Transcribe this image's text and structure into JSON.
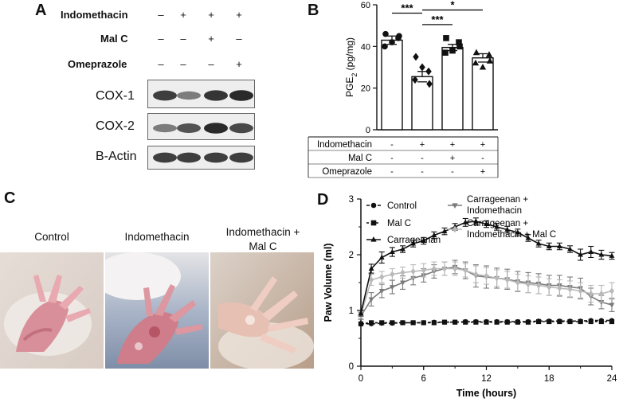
{
  "panels": {
    "a": "A",
    "b": "B",
    "c": "C",
    "d": "D"
  },
  "panel_a": {
    "conditions": [
      {
        "label": "Indomethacin",
        "signs": [
          "–",
          "+",
          "+",
          "+"
        ]
      },
      {
        "label": "Mal C",
        "signs": [
          "–",
          "–",
          "+",
          "–"
        ]
      },
      {
        "label": "Omeprazole",
        "signs": [
          "–",
          "–",
          "–",
          "+"
        ]
      }
    ],
    "blots": [
      {
        "label": "COX-1",
        "intensity": [
          0.85,
          0.55,
          0.9,
          0.95
        ]
      },
      {
        "label": "COX-2",
        "intensity": [
          0.55,
          0.75,
          0.95,
          0.8
        ]
      },
      {
        "label": "B-Actin",
        "intensity": [
          0.85,
          0.85,
          0.85,
          0.85
        ]
      }
    ]
  },
  "panel_c": {
    "captions": [
      "Control",
      "Indomethacin",
      "Indomethacin +\nMal C"
    ]
  },
  "chart_data": [
    {
      "type": "bar",
      "panel": "B",
      "ylabel": "PGE",
      "ylabel_sub": "2",
      "ylabel_unit": " (pg/mg)",
      "ylim": [
        0,
        60
      ],
      "yticks": [
        0,
        20,
        40,
        60
      ],
      "categories": [
        "Control",
        "Indomethacin",
        "Indomethacin + Mal C",
        "Indomethacin + Omeprazole"
      ],
      "values": [
        43,
        25.5,
        39.5,
        34.5
      ],
      "errors": [
        2,
        2.5,
        1.5,
        2
      ],
      "points": [
        [
          46,
          44,
          40,
          45,
          42
        ],
        [
          35,
          28,
          24,
          22,
          30
        ],
        [
          44,
          42,
          37,
          40,
          38
        ],
        [
          37,
          36,
          32,
          33,
          30
        ]
      ],
      "markers": [
        "circle",
        "diamond",
        "square",
        "triangle"
      ],
      "significance": [
        {
          "label": "***",
          "from": 0,
          "to": 1,
          "y": 56
        },
        {
          "label": "*",
          "from": 1,
          "to": 3,
          "y": 57.5
        },
        {
          "label": "***",
          "from": 1,
          "to": 2,
          "y": 50.5
        }
      ],
      "table": [
        {
          "label": "Indomethacin",
          "signs": [
            "-",
            "+",
            "+",
            "+"
          ]
        },
        {
          "label": "Mal C",
          "signs": [
            "-",
            "-",
            "+",
            "-"
          ]
        },
        {
          "label": "Omeprazole",
          "signs": [
            "-",
            "-",
            "-",
            "+"
          ]
        }
      ]
    },
    {
      "type": "line",
      "panel": "D",
      "xlabel": "Time (hours)",
      "ylabel": "Paw Volume (ml)",
      "xlim": [
        0,
        24
      ],
      "ylim": [
        0,
        3
      ],
      "xticks": [
        0,
        6,
        12,
        18,
        24
      ],
      "yticks": [
        0,
        1,
        2,
        3
      ],
      "x": [
        0,
        1,
        2,
        3,
        4,
        5,
        6,
        7,
        8,
        9,
        10,
        11,
        12,
        13,
        14,
        15,
        16,
        17,
        18,
        19,
        20,
        21,
        22,
        23,
        24
      ],
      "series": [
        {
          "name": "Control",
          "color": "#111111",
          "marker": "circle",
          "dash": "4,3",
          "values": [
            0.76,
            0.76,
            0.77,
            0.77,
            0.78,
            0.78,
            0.78,
            0.79,
            0.79,
            0.79,
            0.8,
            0.8,
            0.8,
            0.8,
            0.8,
            0.8,
            0.8,
            0.81,
            0.81,
            0.81,
            0.81,
            0.81,
            0.82,
            0.82,
            0.82
          ],
          "errors": [
            0.02,
            0.02,
            0.02,
            0.02,
            0.02,
            0.02,
            0.02,
            0.02,
            0.02,
            0.02,
            0.02,
            0.02,
            0.02,
            0.02,
            0.02,
            0.02,
            0.02,
            0.02,
            0.02,
            0.02,
            0.02,
            0.02,
            0.02,
            0.02,
            0.02
          ]
        },
        {
          "name": "Mal C",
          "color": "#111111",
          "marker": "square",
          "dash": "3,3",
          "values": [
            0.76,
            0.78,
            0.78,
            0.78,
            0.78,
            0.78,
            0.78,
            0.78,
            0.79,
            0.79,
            0.79,
            0.79,
            0.79,
            0.79,
            0.79,
            0.79,
            0.79,
            0.8,
            0.8,
            0.8,
            0.8,
            0.8,
            0.8,
            0.8,
            0.8
          ],
          "errors": [
            0.02,
            0.02,
            0.02,
            0.02,
            0.02,
            0.02,
            0.02,
            0.02,
            0.02,
            0.02,
            0.02,
            0.02,
            0.02,
            0.02,
            0.02,
            0.02,
            0.02,
            0.02,
            0.02,
            0.02,
            0.02,
            0.02,
            0.02,
            0.02,
            0.02
          ]
        },
        {
          "name": "Carrageenan",
          "color": "#111111",
          "marker": "triangle",
          "dash": "",
          "values": [
            0.95,
            1.75,
            1.95,
            2.05,
            2.1,
            2.2,
            2.25,
            2.35,
            2.42,
            2.5,
            2.58,
            2.6,
            2.55,
            2.5,
            2.45,
            2.4,
            2.3,
            2.2,
            2.15,
            2.15,
            2.1,
            2.0,
            2.05,
            2.0,
            1.98
          ],
          "errors": [
            0.05,
            0.08,
            0.1,
            0.08,
            0.06,
            0.06,
            0.06,
            0.06,
            0.06,
            0.06,
            0.07,
            0.06,
            0.06,
            0.06,
            0.06,
            0.06,
            0.06,
            0.06,
            0.06,
            0.06,
            0.06,
            0.1,
            0.1,
            0.08,
            0.06
          ]
        },
        {
          "name": "Carrageenan + Indomethacin",
          "color": "#7a7a7a",
          "marker": "triangle-down",
          "dash": "",
          "values": [
            0.9,
            1.2,
            1.35,
            1.42,
            1.5,
            1.58,
            1.63,
            1.7,
            1.75,
            1.78,
            1.72,
            1.62,
            1.6,
            1.58,
            1.56,
            1.52,
            1.5,
            1.48,
            1.45,
            1.45,
            1.42,
            1.4,
            1.25,
            1.15,
            1.1
          ],
          "errors": [
            0.06,
            0.12,
            0.12,
            0.12,
            0.12,
            0.12,
            0.12,
            0.12,
            0.12,
            0.12,
            0.15,
            0.2,
            0.2,
            0.18,
            0.18,
            0.18,
            0.18,
            0.18,
            0.18,
            0.18,
            0.18,
            0.18,
            0.15,
            0.12,
            0.12
          ]
        },
        {
          "name": "Carrageenan + Indomethacin + Mal C",
          "color": "#b9b9b9",
          "marker": "diamond",
          "dash": "",
          "values": [
            0.92,
            1.55,
            1.6,
            1.65,
            1.68,
            1.7,
            1.72,
            1.75,
            1.75,
            1.75,
            1.72,
            1.65,
            1.62,
            1.58,
            1.55,
            1.5,
            1.47,
            1.45,
            1.42,
            1.4,
            1.38,
            1.35,
            1.3,
            1.3,
            1.35
          ],
          "errors": [
            0.06,
            0.1,
            0.1,
            0.1,
            0.1,
            0.12,
            0.12,
            0.12,
            0.12,
            0.12,
            0.12,
            0.15,
            0.15,
            0.15,
            0.15,
            0.15,
            0.15,
            0.15,
            0.15,
            0.15,
            0.15,
            0.15,
            0.15,
            0.15,
            0.15
          ]
        }
      ],
      "legend_placement": "top-left"
    }
  ]
}
